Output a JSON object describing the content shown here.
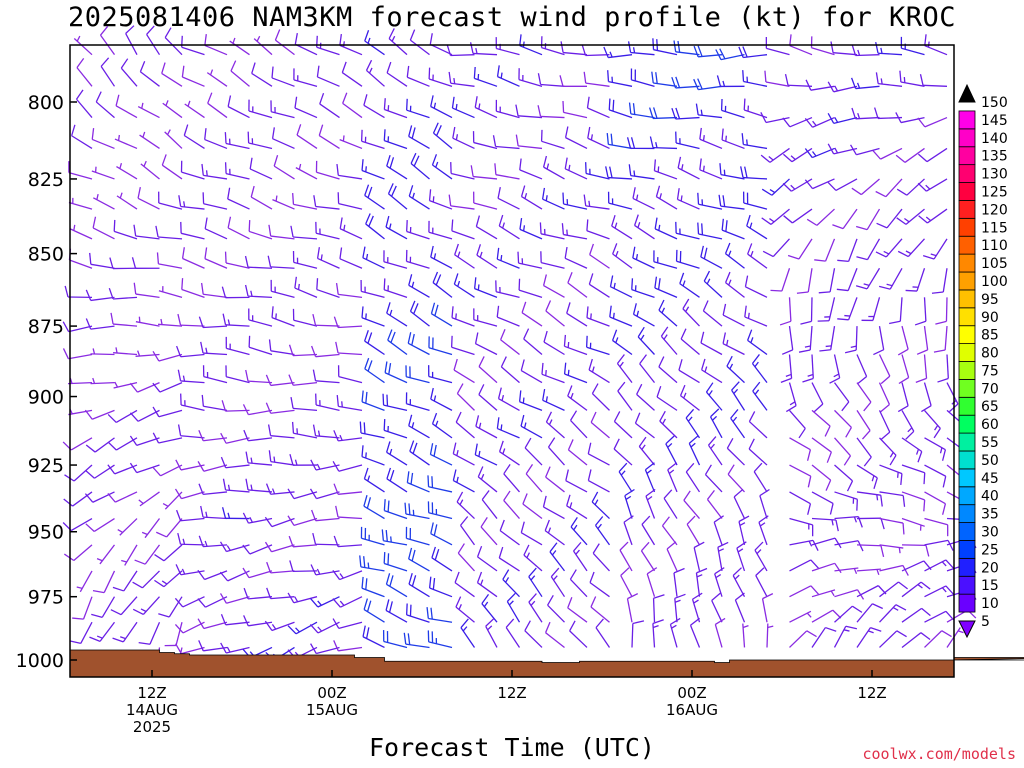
{
  "chart_data": {
    "type": "wind-barb-profile",
    "title": "2025081406 NAM3KM forecast wind profile (kt) for KROC",
    "xlabel": "Forecast Time (UTC)",
    "ylabel": "",
    "y_axis": {
      "scale": "pressure-log",
      "ticks": [
        800,
        825,
        850,
        875,
        900,
        925,
        950,
        975,
        1000
      ],
      "range": [
        780,
        1000
      ],
      "reversed": true
    },
    "x_axis": {
      "unit": "forecast hour",
      "range": [
        6,
        78
      ],
      "ticks": [
        {
          "hour": 12,
          "line1": "12Z",
          "line2": "14AUG",
          "line3": "2025"
        },
        {
          "hour": 24,
          "line1": "00Z",
          "line2": "15AUG",
          "line3": ""
        },
        {
          "hour": 36,
          "line1": "12Z",
          "line2": "",
          "line3": ""
        },
        {
          "hour": 48,
          "line1": "00Z",
          "line2": "16AUG",
          "line3": ""
        },
        {
          "hour": 60,
          "line1": "12Z",
          "line2": "",
          "line3": ""
        }
      ]
    },
    "colorbar": {
      "values": [
        "5",
        "10",
        "15",
        "20",
        "25",
        "30",
        "35",
        "40",
        "45",
        "50",
        "55",
        "60",
        "65",
        "70",
        "75",
        "80",
        "85",
        "90",
        "95",
        "100",
        "105",
        "110",
        "115",
        "120",
        "125",
        "130",
        "135",
        "140",
        "145",
        "150"
      ],
      "colors": [
        "#8000ff",
        "#6a00ff",
        "#4b10ff",
        "#2020ff",
        "#0040ff",
        "#0064ff",
        "#0088ff",
        "#00a8ff",
        "#00c8ff",
        "#00e0d0",
        "#00f0a0",
        "#00ff60",
        "#30ff30",
        "#70ff20",
        "#a8ff10",
        "#e0ff00",
        "#ffff00",
        "#ffe000",
        "#ffc000",
        "#ffa000",
        "#ff8800",
        "#ff6000",
        "#ff4000",
        "#ff2020",
        "#ff0040",
        "#ff0070",
        "#ff00a0",
        "#ff00c8",
        "#ff00e8",
        "#000000"
      ]
    },
    "terrain": {
      "color": "#a0522d",
      "surface_pressure": [
        {
          "hour": 6,
          "p": 996
        },
        {
          "hour": 11.5,
          "p": 996
        },
        {
          "hour": 12.5,
          "p": 997
        },
        {
          "hour": 13.5,
          "p": 997.5
        },
        {
          "hour": 14.5,
          "p": 998
        },
        {
          "hour": 23.5,
          "p": 998
        },
        {
          "hour": 25.5,
          "p": 999
        },
        {
          "hour": 27.5,
          "p": 1000.5
        },
        {
          "hour": 35.5,
          "p": 1000.5
        },
        {
          "hour": 38,
          "p": 1001
        },
        {
          "hour": 40.5,
          "p": 1000.5
        },
        {
          "hour": 44,
          "p": 1000.5
        },
        {
          "hour": 49.5,
          "p": 1001
        },
        {
          "hour": 50.5,
          "p": 1000
        },
        {
          "hour": 54,
          "p": 1000
        },
        {
          "hour": 71.5,
          "p": 1000
        },
        {
          "hour": 73.5,
          "p": 999
        },
        {
          "hour": 78,
          "p": 999
        }
      ]
    },
    "wind_field": {
      "units": "kt",
      "time_step_hours": 1.5,
      "levels": [
        785,
        795,
        805,
        815,
        825,
        835,
        845,
        855,
        865,
        875,
        885,
        895,
        905,
        915,
        925,
        935,
        945,
        955,
        965,
        975,
        985,
        995
      ],
      "regimes": [
        {
          "from_hour": 6,
          "to_hour": 15,
          "low_dir": 200,
          "high_dir": 320,
          "speed_low": 12,
          "speed_high": 10
        },
        {
          "from_hour": 15,
          "to_hour": 27,
          "low_dir": 250,
          "high_dir": 300,
          "speed_low": 14,
          "speed_high": 12
        },
        {
          "from_hour": 27,
          "to_hour": 33,
          "low_dir": 290,
          "high_dir": 300,
          "speed_low": 24,
          "speed_high": 16
        },
        {
          "from_hour": 33,
          "to_hour": 44,
          "low_dir": 320,
          "high_dir": 280,
          "speed_low": 14,
          "speed_high": 14
        },
        {
          "from_hour": 44,
          "to_hour": 54,
          "low_dir": 350,
          "high_dir": 270,
          "speed_low": 12,
          "speed_high": 20
        },
        {
          "from_hour": 54,
          "to_hour": 78,
          "low_dir": 40,
          "high_dir": 280,
          "speed_low": 12,
          "speed_high": 14
        }
      ]
    }
  },
  "credit": "coolwx.com/models"
}
